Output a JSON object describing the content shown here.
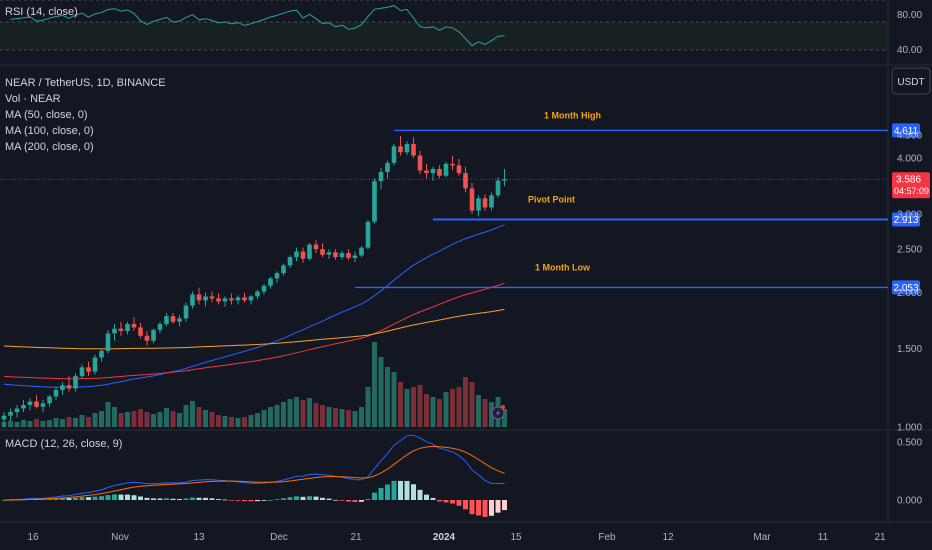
{
  "chart_data": {
    "type": "candlestick",
    "symbol": "NEAR / TetherUS, 1D, BINANCE",
    "quote_currency": "USDT",
    "indicators": {
      "rsi_label": "RSI (14, close)",
      "vol_label": "Vol · NEAR",
      "ma50_label": "MA (50, close, 0)",
      "ma100_label": "MA (100, close, 0)",
      "ma200_label": "MA (200, close, 0)",
      "macd_label": "MACD (12, 26, close, 9)"
    },
    "price_axis": {
      "ticks": [
        "4.500",
        "4.000",
        "3.000",
        "2.500",
        "2.000",
        "1.500",
        "1.000"
      ],
      "tick_values": [
        4.5,
        4.0,
        3.0,
        2.5,
        2.0,
        1.5,
        1.0
      ]
    },
    "rsi_axis": {
      "ticks": [
        "80.00",
        "40.00"
      ],
      "tick_values": [
        80,
        40
      ]
    },
    "macd_axis": {
      "ticks": [
        "0.500",
        "0.000"
      ],
      "tick_values": [
        0.5,
        0.0
      ]
    },
    "x_axis": {
      "ticks": [
        "16",
        "Nov",
        "13",
        "Dec",
        "21",
        "2024",
        "15",
        "Feb",
        "12",
        "Mar",
        "11",
        "21"
      ],
      "bold": "2024"
    },
    "levels": [
      {
        "name": "1 Month High",
        "value": 4.611,
        "label": "4.611",
        "start_day": 60
      },
      {
        "name": "Pivot Point",
        "value": 2.913,
        "label": "2.913",
        "start_day": 66
      },
      {
        "name": "1 Month Low",
        "value": 2.053,
        "label": "2.053",
        "start_day": 54
      }
    ],
    "last_price": {
      "value": 3.586,
      "label": "3.586",
      "countdown": "04:57:09"
    },
    "candles": [
      [
        1.04,
        1.08,
        1.0,
        1.06,
        0.05
      ],
      [
        1.06,
        1.1,
        1.03,
        1.08,
        0.06
      ],
      [
        1.08,
        1.12,
        1.05,
        1.1,
        0.05
      ],
      [
        1.1,
        1.15,
        1.08,
        1.12,
        0.07
      ],
      [
        1.12,
        1.16,
        1.09,
        1.14,
        0.06
      ],
      [
        1.14,
        1.18,
        1.1,
        1.11,
        0.08
      ],
      [
        1.11,
        1.15,
        1.08,
        1.13,
        0.06
      ],
      [
        1.13,
        1.18,
        1.11,
        1.17,
        0.07
      ],
      [
        1.17,
        1.23,
        1.15,
        1.21,
        0.09
      ],
      [
        1.21,
        1.26,
        1.18,
        1.24,
        0.08
      ],
      [
        1.24,
        1.3,
        1.2,
        1.22,
        0.1
      ],
      [
        1.22,
        1.32,
        1.2,
        1.3,
        0.09
      ],
      [
        1.3,
        1.38,
        1.28,
        1.36,
        0.12
      ],
      [
        1.36,
        1.4,
        1.3,
        1.33,
        0.1
      ],
      [
        1.33,
        1.45,
        1.31,
        1.43,
        0.14
      ],
      [
        1.43,
        1.5,
        1.4,
        1.48,
        0.16
      ],
      [
        1.48,
        1.65,
        1.46,
        1.62,
        0.25
      ],
      [
        1.62,
        1.7,
        1.56,
        1.66,
        0.2
      ],
      [
        1.66,
        1.72,
        1.6,
        1.64,
        0.14
      ],
      [
        1.64,
        1.72,
        1.61,
        1.7,
        0.15
      ],
      [
        1.7,
        1.76,
        1.64,
        1.67,
        0.16
      ],
      [
        1.67,
        1.71,
        1.58,
        1.6,
        0.18
      ],
      [
        1.6,
        1.64,
        1.52,
        1.56,
        0.15
      ],
      [
        1.56,
        1.66,
        1.54,
        1.65,
        0.13
      ],
      [
        1.65,
        1.72,
        1.62,
        1.7,
        0.15
      ],
      [
        1.7,
        1.8,
        1.68,
        1.77,
        0.19
      ],
      [
        1.77,
        1.8,
        1.7,
        1.72,
        0.16
      ],
      [
        1.72,
        1.78,
        1.68,
        1.75,
        0.14
      ],
      [
        1.75,
        1.9,
        1.72,
        1.87,
        0.22
      ],
      [
        1.87,
        2.01,
        1.84,
        1.98,
        0.26
      ],
      [
        1.98,
        2.05,
        1.88,
        1.92,
        0.2
      ],
      [
        1.92,
        2.0,
        1.86,
        1.96,
        0.17
      ],
      [
        1.96,
        2.01,
        1.9,
        1.94,
        0.15
      ],
      [
        1.94,
        1.99,
        1.88,
        1.91,
        0.12
      ],
      [
        1.91,
        1.96,
        1.86,
        1.94,
        0.11
      ],
      [
        1.94,
        1.99,
        1.88,
        1.92,
        0.1
      ],
      [
        1.92,
        1.97,
        1.88,
        1.95,
        0.09
      ],
      [
        1.95,
        2.0,
        1.9,
        1.92,
        0.1
      ],
      [
        1.92,
        1.97,
        1.88,
        1.96,
        0.12
      ],
      [
        1.96,
        2.03,
        1.93,
        2.01,
        0.14
      ],
      [
        2.01,
        2.09,
        1.98,
        2.07,
        0.17
      ],
      [
        2.07,
        2.17,
        2.04,
        2.15,
        0.2
      ],
      [
        2.15,
        2.23,
        2.1,
        2.21,
        0.22
      ],
      [
        2.21,
        2.32,
        2.18,
        2.3,
        0.25
      ],
      [
        2.3,
        2.42,
        2.27,
        2.4,
        0.28
      ],
      [
        2.4,
        2.52,
        2.35,
        2.47,
        0.3
      ],
      [
        2.47,
        2.52,
        2.33,
        2.38,
        0.27
      ],
      [
        2.38,
        2.58,
        2.36,
        2.56,
        0.29
      ],
      [
        2.56,
        2.62,
        2.45,
        2.5,
        0.24
      ],
      [
        2.5,
        2.58,
        2.4,
        2.43,
        0.22
      ],
      [
        2.43,
        2.5,
        2.38,
        2.46,
        0.2
      ],
      [
        2.46,
        2.5,
        2.37,
        2.4,
        0.19
      ],
      [
        2.4,
        2.48,
        2.37,
        2.45,
        0.18
      ],
      [
        2.45,
        2.5,
        2.36,
        2.39,
        0.17
      ],
      [
        2.39,
        2.47,
        2.34,
        2.42,
        0.16
      ],
      [
        2.42,
        2.54,
        2.4,
        2.52,
        0.2
      ],
      [
        2.52,
        2.9,
        2.5,
        2.88,
        0.4
      ],
      [
        2.88,
        3.6,
        2.85,
        3.55,
        0.85
      ],
      [
        3.55,
        3.8,
        3.4,
        3.72,
        0.7
      ],
      [
        3.72,
        3.95,
        3.6,
        3.9,
        0.6
      ],
      [
        3.9,
        4.3,
        3.85,
        4.25,
        0.55
      ],
      [
        4.25,
        4.48,
        4.05,
        4.12,
        0.45
      ],
      [
        4.12,
        4.36,
        4.06,
        4.3,
        0.38
      ],
      [
        4.3,
        4.45,
        4.0,
        4.05,
        0.4
      ],
      [
        4.05,
        4.15,
        3.68,
        3.75,
        0.42
      ],
      [
        3.75,
        3.88,
        3.6,
        3.7,
        0.33
      ],
      [
        3.7,
        3.82,
        3.56,
        3.78,
        0.3
      ],
      [
        3.78,
        3.85,
        3.6,
        3.65,
        0.28
      ],
      [
        3.65,
        3.92,
        3.62,
        3.88,
        0.35
      ],
      [
        3.88,
        4.05,
        3.75,
        3.85,
        0.38
      ],
      [
        3.85,
        3.98,
        3.65,
        3.7,
        0.4
      ],
      [
        3.7,
        3.82,
        3.35,
        3.42,
        0.5
      ],
      [
        3.42,
        3.52,
        3.0,
        3.05,
        0.45
      ],
      [
        3.05,
        3.3,
        2.96,
        3.25,
        0.32
      ],
      [
        3.25,
        3.32,
        3.05,
        3.1,
        0.28
      ],
      [
        3.1,
        3.35,
        3.05,
        3.3,
        0.25
      ],
      [
        3.3,
        3.62,
        3.26,
        3.56,
        0.3
      ],
      [
        3.56,
        3.78,
        3.46,
        3.586,
        0.18
      ]
    ]
  }
}
